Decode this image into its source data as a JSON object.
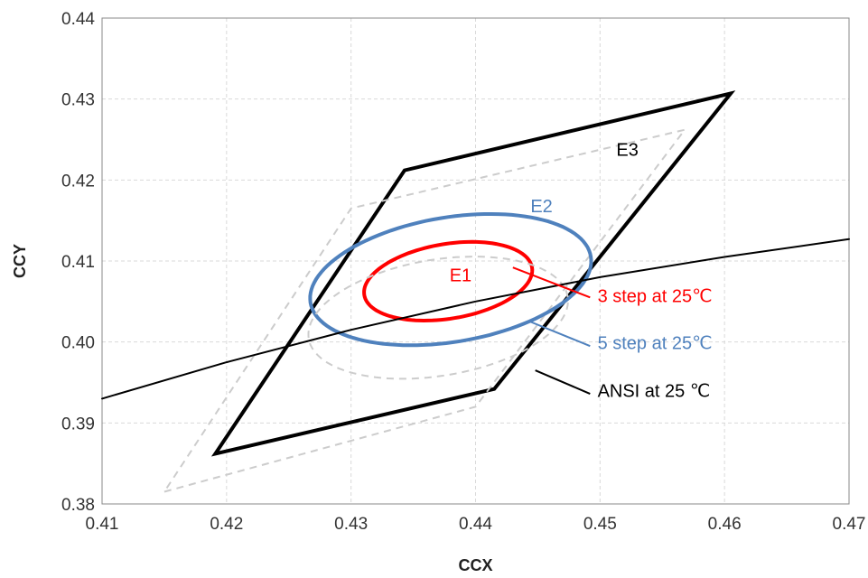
{
  "chart_data": {
    "type": "scatter",
    "xlabel": "CCX",
    "ylabel": "CCY",
    "xlim": [
      0.41,
      0.47
    ],
    "ylim": [
      0.38,
      0.44
    ],
    "x_ticks": [
      "0.41",
      "0.42",
      "0.43",
      "0.44",
      "0.45",
      "0.46",
      "0.47"
    ],
    "y_ticks": [
      "0.38",
      "0.39",
      "0.40",
      "0.41",
      "0.42",
      "0.43",
      "0.44"
    ],
    "grid": true,
    "series": [
      {
        "name": "ANSI at 25 ℃",
        "color": "#000000",
        "kind": "polygon",
        "points": [
          [
            0.4191,
            0.3862
          ],
          [
            0.4415,
            0.3942
          ],
          [
            0.4605,
            0.4307
          ],
          [
            0.4343,
            0.4212
          ]
        ]
      },
      {
        "color": "#cccccc",
        "dashed": true,
        "kind": "polygon",
        "points": [
          [
            0.415,
            0.3815
          ],
          [
            0.44,
            0.392
          ],
          [
            0.4568,
            0.4262
          ],
          [
            0.43,
            0.4165
          ]
        ]
      },
      {
        "name": "5 step at 25℃",
        "color": "#4f81bd",
        "kind": "ellipse",
        "center": [
          0.438,
          0.4077
        ],
        "semi_axes": [
          0.0117,
          0.0075
        ],
        "rotation_deg": 20
      },
      {
        "name": "3 step at 25℃",
        "color": "#ff0000",
        "kind": "ellipse",
        "center": [
          0.4378,
          0.4075
        ],
        "semi_axes": [
          0.007,
          0.0045
        ],
        "rotation_deg": 20
      },
      {
        "color": "#cccccc",
        "dashed": true,
        "kind": "ellipse",
        "center": [
          0.437,
          0.403
        ],
        "semi_axes": [
          0.0108,
          0.007
        ],
        "rotation_deg": 20
      },
      {
        "color": "#000000",
        "kind": "line",
        "points": [
          [
            0.41,
            0.393
          ],
          [
            0.42,
            0.3975
          ],
          [
            0.43,
            0.4015
          ],
          [
            0.44,
            0.405
          ],
          [
            0.45,
            0.408
          ],
          [
            0.46,
            0.4105
          ],
          [
            0.47,
            0.4127
          ]
        ]
      }
    ],
    "region_labels": [
      {
        "text": "E1",
        "x": 0.4388,
        "y": 0.4075,
        "color": "#ff0000"
      },
      {
        "text": "E2",
        "x": 0.4453,
        "y": 0.416,
        "color": "#4f81bd"
      },
      {
        "text": "E3",
        "x": 0.4522,
        "y": 0.423,
        "color": "#000000"
      }
    ],
    "annotations": [
      {
        "text": "3 step at 25℃",
        "color": "#ff0000",
        "label_at": [
          0.4498,
          0.4049
        ],
        "line_from": [
          0.443,
          0.4092
        ],
        "line_to": [
          0.4492,
          0.4055
        ]
      },
      {
        "text": "5 step at 25℃",
        "color": "#4f81bd",
        "label_at": [
          0.4498,
          0.3991
        ],
        "line_from": [
          0.4444,
          0.4025
        ],
        "line_to": [
          0.4492,
          0.3995
        ]
      },
      {
        "text": "ANSI at 25 ℃",
        "color": "#000000",
        "label_at": [
          0.4498,
          0.3932
        ],
        "line_from": [
          0.4448,
          0.3965
        ],
        "line_to": [
          0.4492,
          0.3936
        ]
      }
    ]
  }
}
